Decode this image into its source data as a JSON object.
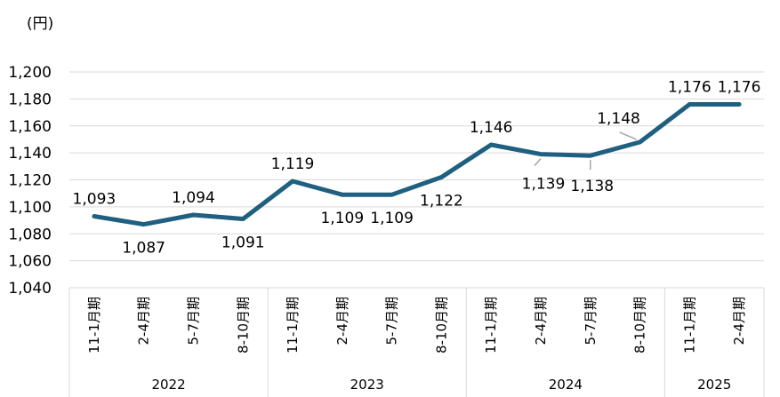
{
  "chart_data": {
    "type": "line",
    "unit_label": "(円)",
    "ylim": [
      1040,
      1200
    ],
    "y_ticks": [
      1040,
      1060,
      1080,
      1100,
      1120,
      1140,
      1160,
      1180,
      1200
    ],
    "y_tick_labels": [
      "1,040",
      "1,060",
      "1,080",
      "1,100",
      "1,120",
      "1,140",
      "1,160",
      "1,180",
      "1,200"
    ],
    "categories": [
      "11-1月期",
      "2-4月期",
      "5-7月期",
      "8-10月期",
      "11-1月期",
      "2-4月期",
      "5-7月期",
      "8-10月期",
      "11-1月期",
      "2-4月期",
      "5-7月期",
      "8-10月期",
      "11-1月期",
      "2-4月期"
    ],
    "groups": [
      {
        "label": "2022",
        "count": 4
      },
      {
        "label": "2023",
        "count": 4
      },
      {
        "label": "2024",
        "count": 4
      },
      {
        "label": "2025",
        "count": 2
      }
    ],
    "series": [
      {
        "values": [
          1093,
          1087,
          1094,
          1091,
          1119,
          1109,
          1109,
          1122,
          1146,
          1139,
          1138,
          1148,
          1176,
          1176
        ],
        "labels": [
          "1,093",
          "1,087",
          "1,094",
          "1,091",
          "1,119",
          "1,109",
          "1,109",
          "1,122",
          "1,146",
          "1,139",
          "1,138",
          "1,148",
          "1,176",
          "1,176"
        ],
        "color": "#1f5f7f"
      }
    ],
    "grid": true
  }
}
